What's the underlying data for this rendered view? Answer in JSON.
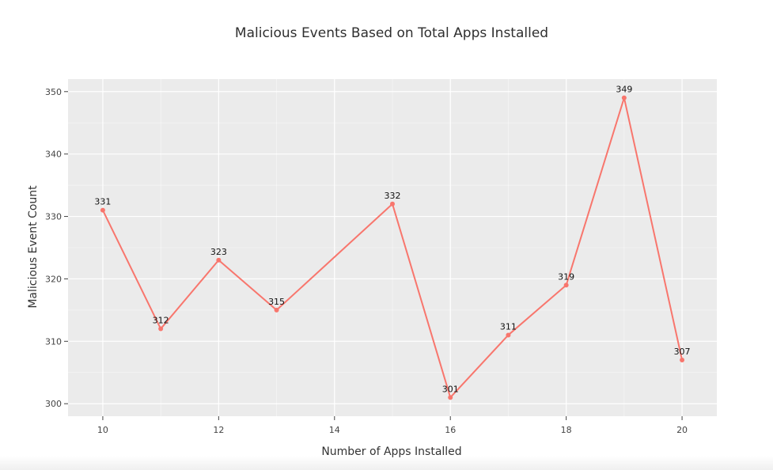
{
  "chart_data": {
    "type": "line",
    "title": "Malicious Events Based on Total Apps Installed",
    "xlabel": "Number of Apps Installed",
    "ylabel": "Malicious Event Count",
    "x": [
      10,
      11,
      12,
      13,
      15,
      16,
      17,
      18,
      19,
      20
    ],
    "y": [
      331,
      312,
      323,
      315,
      332,
      301,
      311,
      319,
      349,
      307
    ],
    "x_ticks": [
      10,
      12,
      14,
      16,
      18,
      20
    ],
    "y_ticks": [
      300,
      310,
      320,
      330,
      340,
      350
    ],
    "xlim": [
      9.4,
      20.6
    ],
    "ylim": [
      298,
      352
    ],
    "grid": true,
    "colors": {
      "line": "#f8766d",
      "panel": "#ebebeb",
      "grid": "#ffffff"
    }
  }
}
